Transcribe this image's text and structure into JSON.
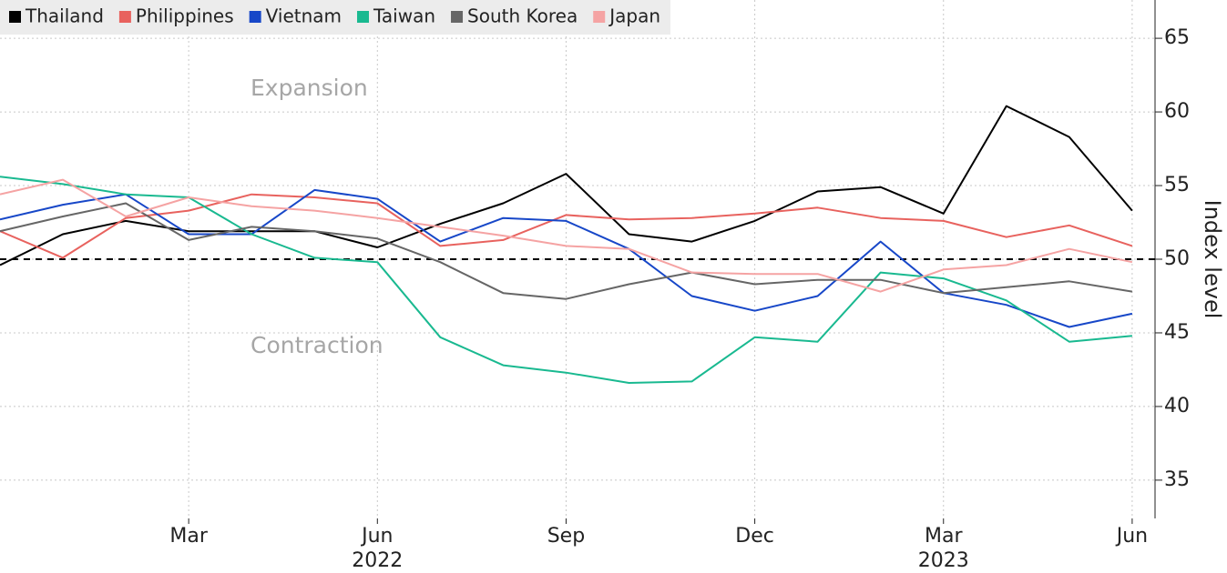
{
  "chart_data": {
    "type": "line",
    "categories": [
      null,
      null,
      null,
      "Mar",
      null,
      null,
      "Jun",
      null,
      null,
      "Sep",
      null,
      null,
      "Dec",
      null,
      null,
      "Mar",
      null,
      null,
      "Jun"
    ],
    "sublabels": [
      null,
      null,
      null,
      null,
      null,
      null,
      "2022",
      null,
      null,
      null,
      null,
      null,
      null,
      null,
      null,
      "2023",
      null,
      null,
      null
    ],
    "series": [
      {
        "name": "Thailand",
        "color": "#000000",
        "values": [
          49.6,
          51.7,
          52.6,
          51.9,
          51.9,
          51.9,
          50.8,
          52.4,
          53.8,
          55.8,
          51.7,
          51.2,
          52.6,
          54.6,
          54.9,
          53.1,
          60.4,
          58.3,
          53.3
        ]
      },
      {
        "name": "Philippines",
        "color": "#e8625e",
        "values": [
          51.9,
          50.1,
          52.8,
          53.3,
          54.4,
          54.2,
          53.8,
          50.9,
          51.3,
          53.0,
          52.7,
          52.8,
          53.1,
          53.5,
          52.8,
          52.6,
          51.5,
          52.3,
          50.9
        ]
      },
      {
        "name": "Vietnam",
        "color": "#1747c8",
        "values": [
          52.7,
          53.7,
          54.4,
          51.7,
          51.7,
          54.7,
          54.1,
          51.2,
          52.8,
          52.6,
          50.7,
          47.5,
          46.5,
          47.5,
          51.2,
          47.7,
          46.9,
          45.4,
          46.3
        ]
      },
      {
        "name": "Taiwan",
        "color": "#19b990",
        "values": [
          55.6,
          55.1,
          54.4,
          54.2,
          51.7,
          50.1,
          49.8,
          44.7,
          42.8,
          42.3,
          41.6,
          41.7,
          44.7,
          44.4,
          49.1,
          48.7,
          47.2,
          44.4,
          44.8
        ]
      },
      {
        "name": "South Korea",
        "color": "#666666",
        "values": [
          51.9,
          52.9,
          53.8,
          51.3,
          52.2,
          51.9,
          51.4,
          49.8,
          47.7,
          47.3,
          48.3,
          49.1,
          48.3,
          48.6,
          48.6,
          47.7,
          48.1,
          48.5,
          47.8
        ]
      },
      {
        "name": "Japan",
        "color": "#f5a3a3",
        "values": [
          54.4,
          55.4,
          52.9,
          54.2,
          53.6,
          53.3,
          52.8,
          52.2,
          51.6,
          50.9,
          50.7,
          49.1,
          49.0,
          49.0,
          47.8,
          49.3,
          49.6,
          50.7,
          49.8
        ]
      }
    ],
    "y_axis_label": "Index level",
    "annotations": [
      "Expansion",
      "Contraction"
    ],
    "reference_line": 50,
    "ylim": [
      32.4,
      67.6
    ],
    "yticks": [
      35,
      40,
      45,
      50,
      55,
      60,
      65
    ],
    "grid": true,
    "legend": "top-left"
  }
}
